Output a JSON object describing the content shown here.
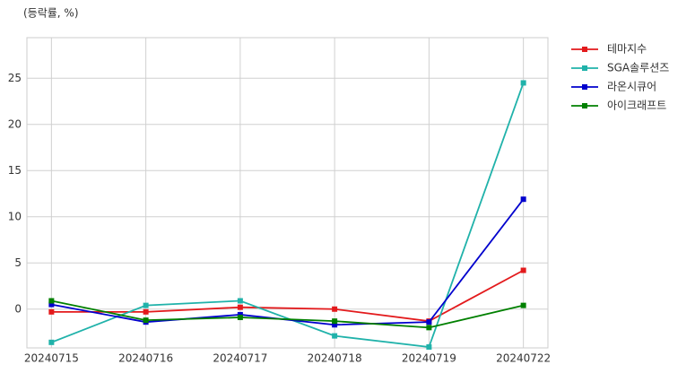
{
  "chart_data": {
    "type": "line",
    "title": "(등락률, %)",
    "categories": [
      "20240715",
      "20240716",
      "20240717",
      "20240718",
      "20240719",
      "20240722"
    ],
    "series": [
      {
        "name": "테마지수",
        "color": "#e31a1c",
        "values": [
          -0.3,
          -0.3,
          0.2,
          0.0,
          -1.3,
          4.2
        ]
      },
      {
        "name": "SGA솔루션즈",
        "color": "#20b2aa",
        "values": [
          -3.6,
          0.4,
          0.9,
          -2.9,
          -4.1,
          24.5
        ]
      },
      {
        "name": "라온시큐어",
        "color": "#0000cd",
        "values": [
          0.5,
          -1.4,
          -0.6,
          -1.7,
          -1.4,
          11.9
        ]
      },
      {
        "name": "아이크래프트",
        "color": "#008000",
        "values": [
          0.9,
          -1.2,
          -0.9,
          -1.3,
          -2.0,
          0.4
        ]
      }
    ],
    "ylim": [
      -4.2,
      29.4
    ],
    "yticks": [
      0,
      5,
      10,
      15,
      20,
      25
    ],
    "grid": true,
    "legend": "outside-right"
  }
}
